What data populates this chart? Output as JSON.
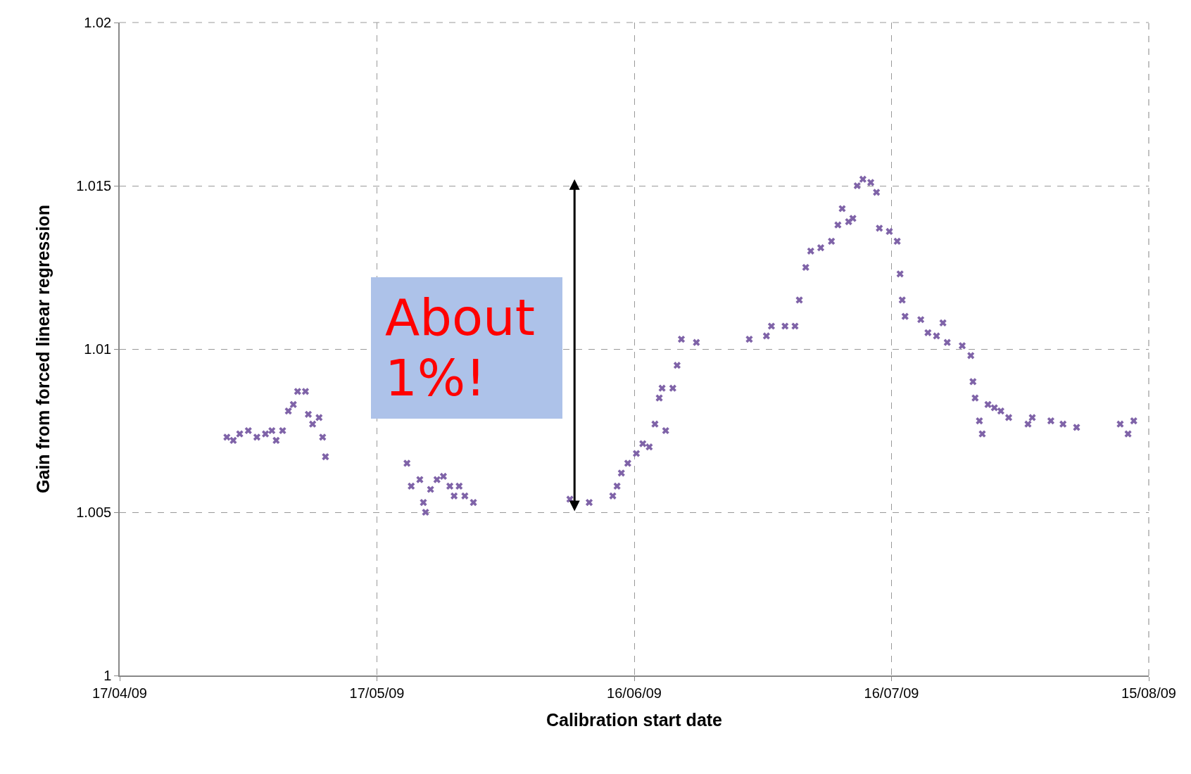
{
  "chart_data": {
    "type": "scatter",
    "xlabel": "Calibration start date",
    "ylabel": "Gain from forced linear regression",
    "xlim": [
      "2009-04-17",
      "2009-08-15"
    ],
    "xticks": [
      {
        "value": "2009-04-17",
        "label": "17/04/09"
      },
      {
        "value": "2009-05-17",
        "label": "17/05/09"
      },
      {
        "value": "2009-06-16",
        "label": "16/06/09"
      },
      {
        "value": "2009-07-16",
        "label": "16/07/09"
      },
      {
        "value": "2009-08-15",
        "label": "15/08/09"
      }
    ],
    "ylim": [
      1,
      1.02
    ],
    "yticks": [
      1,
      1.005,
      1.01,
      1.015,
      1.02
    ],
    "grid": true,
    "marker": "cross",
    "annotations": [
      "About 1%!"
    ],
    "series": [
      {
        "color": "#7f63a8",
        "x": [
          "2009-04-29T12:00",
          "2009-04-30T06:00",
          "2009-05-01",
          "2009-05-02",
          "2009-05-03",
          "2009-05-04",
          "2009-05-04T18:00",
          "2009-05-05T06:00",
          "2009-05-06",
          "2009-05-06T16:00",
          "2009-05-07T06:00",
          "2009-05-07T18:00",
          "2009-05-08T16:00",
          "2009-05-09",
          "2009-05-09T12:00",
          "2009-05-10T06:00",
          "2009-05-10T16:00",
          "2009-05-11",
          "2009-05-20T12:00",
          "2009-05-21",
          "2009-05-22",
          "2009-05-22T10:00",
          "2009-05-22T16:00",
          "2009-05-23T06:00",
          "2009-05-24",
          "2009-05-24T18:00",
          "2009-05-25T12:00",
          "2009-05-26",
          "2009-05-26T14:00",
          "2009-05-27T06:00",
          "2009-05-28T06:00",
          "2009-06-08T12:00",
          "2009-06-10T18:00",
          "2009-06-13T12:00",
          "2009-06-14",
          "2009-06-14T12:00",
          "2009-06-15T06:00",
          "2009-06-16T06:00",
          "2009-06-17",
          "2009-06-17T18:00",
          "2009-06-18T10:00",
          "2009-06-18T22:00",
          "2009-06-19T06:00",
          "2009-06-19T16:00",
          "2009-06-20T12:00",
          "2009-06-21",
          "2009-06-21T12:00",
          "2009-06-23T06:00",
          "2009-06-29T10:00",
          "2009-07-01T10:00",
          "2009-07-02",
          "2009-07-03T14:00",
          "2009-07-04T18:00",
          "2009-07-05T06:00",
          "2009-07-06",
          "2009-07-06T14:00",
          "2009-07-07T18:00",
          "2009-07-09",
          "2009-07-09T18:00",
          "2009-07-10T06:00",
          "2009-07-11",
          "2009-07-11T12:00",
          "2009-07-12",
          "2009-07-12T16:00",
          "2009-07-13T14:00",
          "2009-07-14T06:00",
          "2009-07-14T14:00",
          "2009-07-15T18:00",
          "2009-07-16T16:00",
          "2009-07-17",
          "2009-07-17T06:00",
          "2009-07-17T14:00",
          "2009-07-19T10:00",
          "2009-07-20T06:00",
          "2009-07-21T06:00",
          "2009-07-22",
          "2009-07-22T12:00",
          "2009-07-24T06:00",
          "2009-07-25T06:00",
          "2009-07-25T12:00",
          "2009-07-25T18:00",
          "2009-07-26T06:00",
          "2009-07-26T14:00",
          "2009-07-27T06:00",
          "2009-07-28",
          "2009-07-28T18:00",
          "2009-07-29T16:00",
          "2009-07-31T22:00",
          "2009-08-01T10:00",
          "2009-08-03T14:00",
          "2009-08-05",
          "2009-08-06T14:00",
          "2009-08-11T16:00",
          "2009-08-12T14:00",
          "2009-08-13T06:00"
        ],
        "values": [
          1.0073,
          1.0072,
          1.0074,
          1.0075,
          1.0073,
          1.0074,
          1.0075,
          1.0072,
          1.0075,
          1.0081,
          1.0083,
          1.0087,
          1.0087,
          1.008,
          1.0077,
          1.0079,
          1.0073,
          1.0067,
          1.0065,
          1.0058,
          1.006,
          1.0053,
          1.005,
          1.0057,
          1.006,
          1.0061,
          1.0058,
          1.0055,
          1.0058,
          1.0055,
          1.0053,
          1.0054,
          1.0053,
          1.0055,
          1.0058,
          1.0062,
          1.0065,
          1.0068,
          1.0071,
          1.007,
          1.0077,
          1.0085,
          1.0088,
          1.0075,
          1.0088,
          1.0095,
          1.0103,
          1.0102,
          1.0103,
          1.0104,
          1.0107,
          1.0107,
          1.0107,
          1.0115,
          1.0125,
          1.013,
          1.0131,
          1.0133,
          1.0138,
          1.0143,
          1.0139,
          1.014,
          1.015,
          1.0152,
          1.0151,
          1.0148,
          1.0137,
          1.0136,
          1.0133,
          1.0123,
          1.0115,
          1.011,
          1.0109,
          1.0105,
          1.0104,
          1.0108,
          1.0102,
          1.0101,
          1.0098,
          1.009,
          1.0085,
          1.0078,
          1.0074,
          1.0083,
          1.0082,
          1.0081,
          1.0079,
          1.0077,
          1.0079,
          1.0078,
          1.0077,
          1.0076,
          1.0077,
          1.0074,
          1.0078
        ]
      }
    ]
  }
}
